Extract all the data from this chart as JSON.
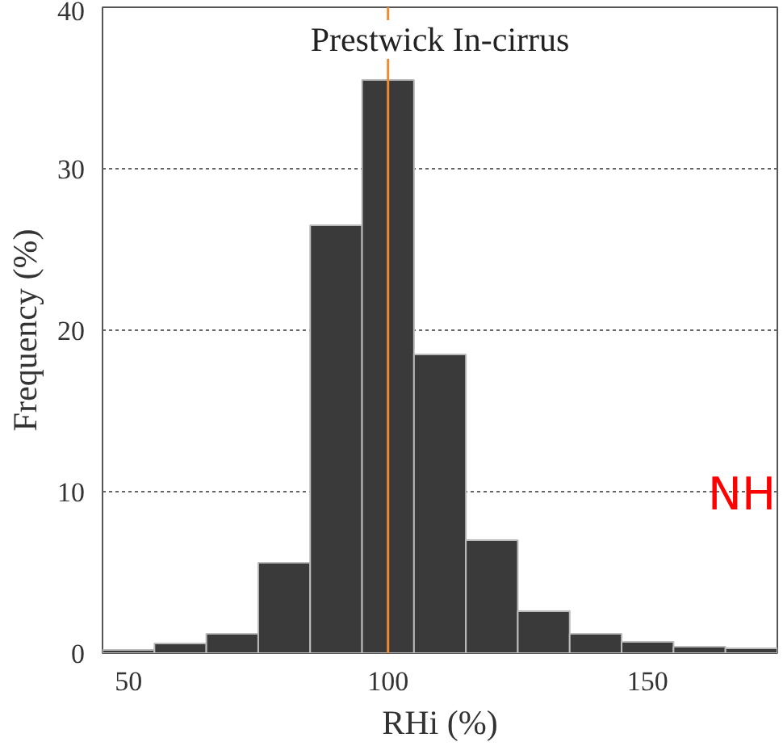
{
  "chart_data": {
    "type": "histogram",
    "title": "Prestwick In-cirrus",
    "xlabel": "RHi (%)",
    "ylabel": "Frequency (%)",
    "bins": [
      45,
      55,
      65,
      75,
      85,
      95,
      105,
      115,
      125,
      135,
      145,
      155,
      165,
      175
    ],
    "values": [
      0.2,
      0.6,
      1.2,
      5.6,
      26.5,
      35.5,
      18.5,
      7,
      2.6,
      1.2,
      0.7,
      0.4,
      0.3
    ],
    "color": "#3a3a3a",
    "xlim": [
      45,
      175
    ],
    "xticks": [
      50,
      100,
      150
    ],
    "ylim": [
      0,
      40
    ],
    "yticks": [
      0,
      10,
      20,
      30,
      40
    ],
    "grid": "y",
    "ref_lines": [
      {
        "axis": "x",
        "value": 100,
        "label": null,
        "color": "#f08a30"
      }
    ],
    "annotations": [
      "NH"
    ]
  }
}
